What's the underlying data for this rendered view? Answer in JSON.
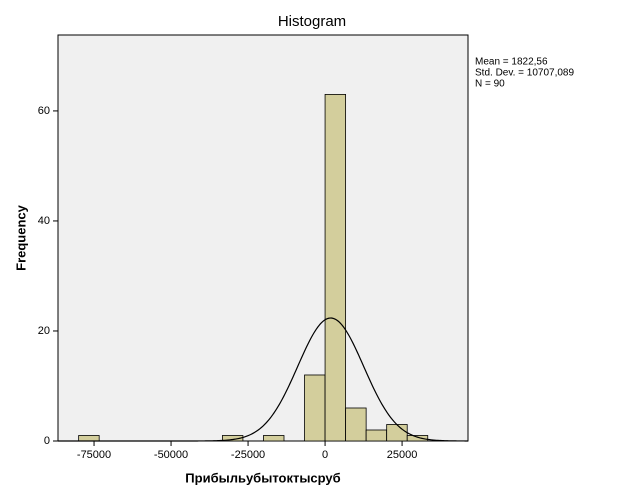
{
  "chart_data": {
    "type": "histogram",
    "title": "Histogram",
    "x_label": "Прибыльубытоктысруб",
    "y_label": "Frequency",
    "bins": [
      -80000,
      -73333,
      -66667,
      -60000,
      -53333,
      -46667,
      -40000,
      -33333,
      -26667,
      -20000,
      -13333,
      -6667,
      0,
      6667,
      13333,
      20000,
      26667,
      33333
    ],
    "counts": [
      1,
      0,
      0,
      0,
      0,
      0,
      0,
      1,
      0,
      1,
      0,
      12,
      63,
      6,
      2,
      3,
      1
    ],
    "color": "#d3ce9c",
    "xlim": [
      -86700,
      46400
    ],
    "xticks": [
      -75000,
      -50000,
      -25000,
      0,
      25000
    ],
    "ylim": [
      0,
      73.8
    ],
    "yticks": [
      0,
      20,
      40,
      60
    ],
    "stats": [
      {
        "label": "Mean = 1822,56",
        "value": 1822.56
      },
      {
        "label": "Std. Dev. = 10707,089",
        "value": 10707.089
      },
      {
        "label": "N = 90",
        "value": 90
      }
    ],
    "normal_curve": true
  }
}
